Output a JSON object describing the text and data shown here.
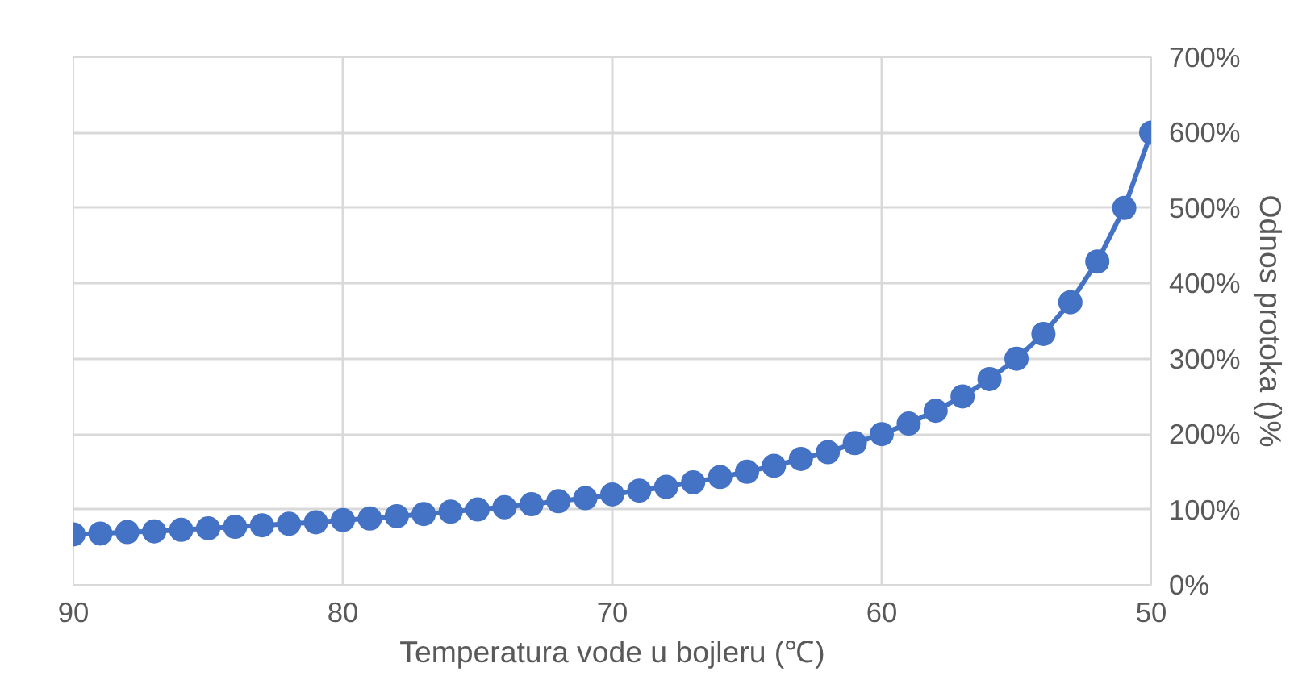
{
  "chart_data": {
    "type": "line",
    "xlabel": "Temperatura vode u bojleru (℃)",
    "ylabel": "Odnos protoka ()%",
    "x": [
      90,
      89,
      88,
      87,
      86,
      85,
      84,
      83,
      82,
      81,
      80,
      79,
      78,
      77,
      76,
      75,
      74,
      73,
      72,
      71,
      70,
      69,
      68,
      67,
      66,
      65,
      64,
      63,
      62,
      61,
      60,
      59,
      58,
      57,
      56,
      55,
      54,
      53,
      52,
      51,
      50
    ],
    "series": [
      {
        "color": "#4472c4",
        "values": [
          67,
          68,
          70,
          71,
          73,
          75,
          77,
          79,
          81,
          83,
          86,
          88,
          91,
          94,
          97,
          100,
          103,
          107,
          111,
          115,
          120,
          125,
          130,
          136,
          143,
          150,
          158,
          167,
          176,
          188,
          200,
          214,
          231,
          250,
          273,
          300,
          333,
          375,
          429,
          500,
          600
        ]
      }
    ],
    "xlim": [
      90,
      50
    ],
    "xticks": [
      90,
      80,
      70,
      60,
      50
    ],
    "ylim": [
      0,
      700
    ],
    "yticks": [
      {
        "value": 0,
        "label": "0%"
      },
      {
        "value": 100,
        "label": "100%"
      },
      {
        "value": 200,
        "label": "200%"
      },
      {
        "value": 300,
        "label": "300%"
      },
      {
        "value": 400,
        "label": "400%"
      },
      {
        "value": 500,
        "label": "500%"
      },
      {
        "value": 600,
        "label": "600%"
      },
      {
        "value": 700,
        "label": "700%"
      }
    ],
    "grid": true,
    "marker": "circle",
    "line_style": "solid"
  }
}
